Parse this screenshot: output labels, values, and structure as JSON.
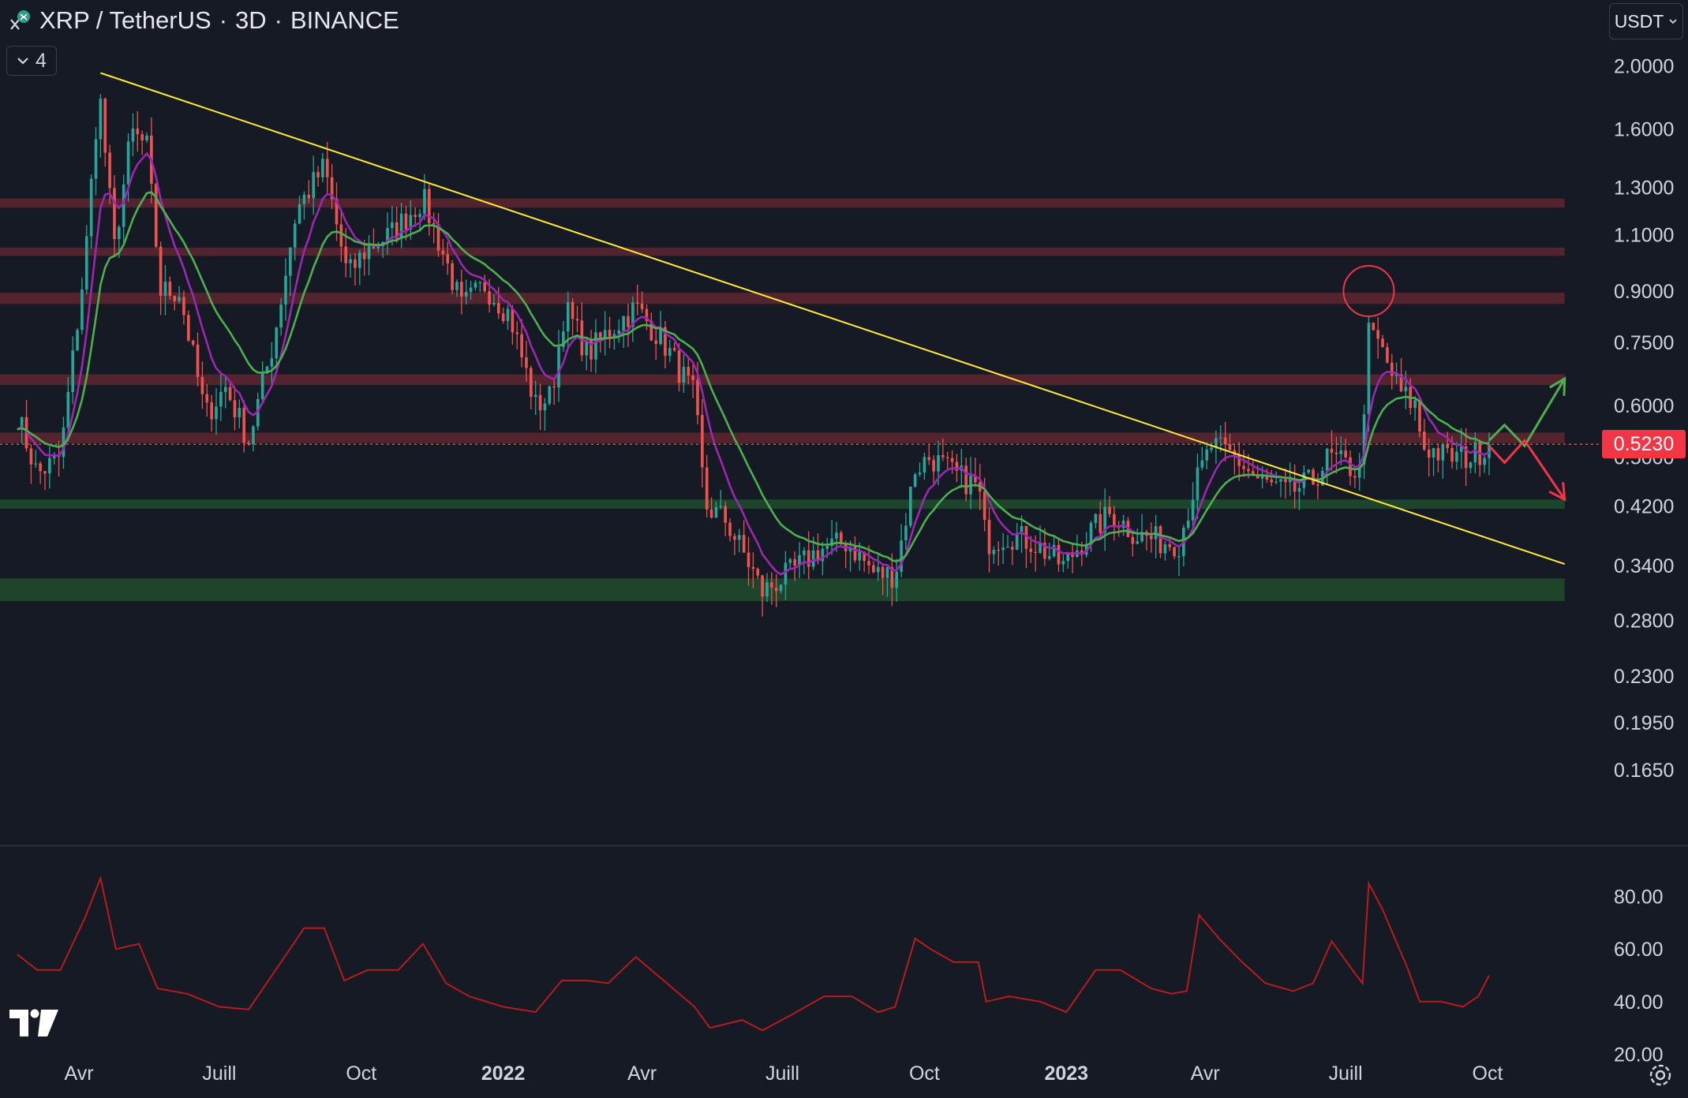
{
  "header": {
    "symbol": "XRP / TetherUS",
    "interval": "3D",
    "exchange": "BINANCE",
    "sep": "·",
    "indicator_count": "4",
    "currency": "USDT"
  },
  "icons": {
    "close": "close-icon",
    "logo": "xrp-logo-icon",
    "collapse": "chevron-down-icon",
    "currency_dropdown": "chevron-down-icon",
    "brand": "tradingview-logo-icon",
    "settings": "gear-icon"
  },
  "colors": {
    "background": "#161a25",
    "bull": "#26a69a",
    "bear": "#ef5350",
    "ma_fast": "#9c27b0",
    "ma_slow": "#4caf50",
    "trendline": "#ffeb3b",
    "resistance_zone": "#5a2530",
    "support_zone": "#1f4a2c",
    "rsi": "#b71c1c",
    "up_arrow": "#4caf50",
    "down_arrow": "#f23645",
    "highlight_circle": "#f23645"
  },
  "chart_data": [
    {
      "type": "candlestick",
      "scale": "log",
      "ylim": [
        0.145,
        2.1
      ],
      "x_tick_labels": [
        "Avr",
        "Juill",
        "Oct",
        "2022",
        "Avr",
        "Juill",
        "Oct",
        "2023",
        "Avr",
        "Juill",
        "Oct"
      ],
      "bold_x_labels": [
        "2022",
        "2023"
      ],
      "x_tick_dates": [
        "2021-04-01",
        "2021-07-01",
        "2021-10-01",
        "2022-01-01",
        "2022-04-01",
        "2022-07-01",
        "2022-10-01",
        "2023-01-01",
        "2023-04-01",
        "2023-07-01",
        "2023-10-01"
      ],
      "y_ticks": [
        {
          "value": 2.0,
          "label": "2.0000"
        },
        {
          "value": 1.6,
          "label": "1.6000"
        },
        {
          "value": 1.3,
          "label": "1.3000"
        },
        {
          "value": 1.1,
          "label": "1.1000"
        },
        {
          "value": 0.9,
          "label": "0.9000"
        },
        {
          "value": 0.75,
          "label": "0.7500"
        },
        {
          "value": 0.6,
          "label": "0.6000"
        },
        {
          "value": 0.5,
          "label": "0.5000"
        },
        {
          "value": 0.42,
          "label": "0.4200"
        },
        {
          "value": 0.34,
          "label": "0.3400"
        },
        {
          "value": 0.28,
          "label": "0.2800"
        },
        {
          "value": 0.23,
          "label": "0.2300"
        },
        {
          "value": 0.195,
          "label": "0.1950"
        },
        {
          "value": 0.165,
          "label": "0.1650"
        }
      ],
      "last_price": 0.523,
      "last_price_label": "0.5230",
      "price_path": [
        [
          "2021-02-20",
          0.58
        ],
        [
          "2021-03-05",
          0.47
        ],
        [
          "2021-03-20",
          0.5
        ],
        [
          "2021-04-05",
          1.0
        ],
        [
          "2021-04-14",
          1.85
        ],
        [
          "2021-04-24",
          1.05
        ],
        [
          "2021-05-05",
          1.58
        ],
        [
          "2021-05-15",
          1.5
        ],
        [
          "2021-05-24",
          0.9
        ],
        [
          "2021-06-05",
          0.9
        ],
        [
          "2021-06-22",
          0.58
        ],
        [
          "2021-07-05",
          0.64
        ],
        [
          "2021-07-20",
          0.53
        ],
        [
          "2021-08-05",
          0.75
        ],
        [
          "2021-08-20",
          1.2
        ],
        [
          "2021-09-07",
          1.4
        ],
        [
          "2021-09-22",
          0.95
        ],
        [
          "2021-10-05",
          1.05
        ],
        [
          "2021-10-20",
          1.1
        ],
        [
          "2021-11-10",
          1.25
        ],
        [
          "2021-11-25",
          1.0
        ],
        [
          "2021-12-05",
          0.85
        ],
        [
          "2021-12-20",
          0.92
        ],
        [
          "2022-01-05",
          0.83
        ],
        [
          "2022-01-22",
          0.6
        ],
        [
          "2022-02-01",
          0.62
        ],
        [
          "2022-02-10",
          0.85
        ],
        [
          "2022-02-25",
          0.72
        ],
        [
          "2022-03-10",
          0.78
        ],
        [
          "2022-03-28",
          0.85
        ],
        [
          "2022-04-15",
          0.75
        ],
        [
          "2022-05-05",
          0.62
        ],
        [
          "2022-05-12",
          0.42
        ],
        [
          "2022-05-25",
          0.4
        ],
        [
          "2022-06-10",
          0.34
        ],
        [
          "2022-06-18",
          0.31
        ],
        [
          "2022-07-05",
          0.33
        ],
        [
          "2022-07-25",
          0.36
        ],
        [
          "2022-08-12",
          0.37
        ],
        [
          "2022-08-30",
          0.33
        ],
        [
          "2022-09-12",
          0.33
        ],
        [
          "2022-09-25",
          0.48
        ],
        [
          "2022-10-05",
          0.5
        ],
        [
          "2022-10-20",
          0.47
        ],
        [
          "2022-11-05",
          0.45
        ],
        [
          "2022-11-10",
          0.37
        ],
        [
          "2022-11-25",
          0.38
        ],
        [
          "2022-12-10",
          0.37
        ],
        [
          "2022-12-30",
          0.34
        ],
        [
          "2023-01-15",
          0.38
        ],
        [
          "2023-01-30",
          0.41
        ],
        [
          "2023-02-15",
          0.38
        ],
        [
          "2023-03-05",
          0.37
        ],
        [
          "2023-03-15",
          0.37
        ],
        [
          "2023-03-25",
          0.45
        ],
        [
          "2023-04-05",
          0.52
        ],
        [
          "2023-04-20",
          0.5
        ],
        [
          "2023-05-05",
          0.46
        ],
        [
          "2023-05-25",
          0.44
        ],
        [
          "2023-06-10",
          0.46
        ],
        [
          "2023-06-20",
          0.5
        ],
        [
          "2023-07-05",
          0.48
        ],
        [
          "2023-07-12",
          0.47
        ],
        [
          "2023-07-14",
          0.78
        ],
        [
          "2023-07-22",
          0.75
        ],
        [
          "2023-08-05",
          0.63
        ],
        [
          "2023-08-15",
          0.6
        ],
        [
          "2023-08-20",
          0.52
        ],
        [
          "2023-09-05",
          0.5
        ],
        [
          "2023-09-20",
          0.5
        ],
        [
          "2023-10-02",
          0.523
        ]
      ],
      "ma_fast_name": "",
      "ma_slow_name": "",
      "trendline": [
        [
          "2021-04-15",
          1.95
        ],
        [
          "2023-11-20",
          0.342
        ]
      ],
      "resistance_zones": [
        [
          1.21,
          1.25
        ],
        [
          1.02,
          1.05
        ],
        [
          0.86,
          0.895
        ],
        [
          0.645,
          0.67
        ],
        [
          0.525,
          0.545
        ]
      ],
      "support_zones": [
        [
          0.416,
          0.43
        ],
        [
          0.3,
          0.325
        ]
      ],
      "zone_end_date": "2023-11-20",
      "projections": [
        {
          "color": "up",
          "points": [
            [
              "2023-10-02",
              0.53
            ],
            [
              "2023-10-12",
              0.56
            ],
            [
              "2023-10-25",
              0.52
            ],
            [
              "2023-11-20",
              0.66
            ]
          ]
        },
        {
          "color": "down",
          "points": [
            [
              "2023-10-02",
              0.52
            ],
            [
              "2023-10-12",
              0.49
            ],
            [
              "2023-10-25",
              0.53
            ],
            [
              "2023-11-20",
              0.43
            ]
          ]
        }
      ],
      "highlight_circle": {
        "date": "2023-07-16",
        "value": 0.9
      }
    },
    {
      "type": "line",
      "name": "",
      "ylim": [
        19.5,
        88
      ],
      "y_ticks": [
        80,
        60,
        40,
        20
      ],
      "y_tick_labels": [
        "80.00",
        "60.00",
        "40.00",
        "20.00"
      ],
      "series": [
        [
          "2021-02-20",
          58
        ],
        [
          "2021-03-05",
          52
        ],
        [
          "2021-03-20",
          52
        ],
        [
          "2021-04-05",
          72
        ],
        [
          "2021-04-15",
          87
        ],
        [
          "2021-04-25",
          60
        ],
        [
          "2021-05-10",
          62
        ],
        [
          "2021-05-22",
          45
        ],
        [
          "2021-06-10",
          43
        ],
        [
          "2021-07-01",
          38
        ],
        [
          "2021-07-20",
          37
        ],
        [
          "2021-08-10",
          55
        ],
        [
          "2021-08-25",
          68
        ],
        [
          "2021-09-07",
          68
        ],
        [
          "2021-09-20",
          48
        ],
        [
          "2021-10-05",
          52
        ],
        [
          "2021-10-25",
          52
        ],
        [
          "2021-11-10",
          62
        ],
        [
          "2021-11-25",
          47
        ],
        [
          "2021-12-10",
          42
        ],
        [
          "2022-01-01",
          38
        ],
        [
          "2022-01-22",
          36
        ],
        [
          "2022-02-08",
          48
        ],
        [
          "2022-02-25",
          48
        ],
        [
          "2022-03-10",
          47
        ],
        [
          "2022-03-28",
          57
        ],
        [
          "2022-04-15",
          48
        ],
        [
          "2022-05-05",
          38
        ],
        [
          "2022-05-15",
          30
        ],
        [
          "2022-06-05",
          33
        ],
        [
          "2022-06-18",
          29
        ],
        [
          "2022-07-10",
          36
        ],
        [
          "2022-07-28",
          42
        ],
        [
          "2022-08-15",
          42
        ],
        [
          "2022-09-01",
          36
        ],
        [
          "2022-09-12",
          38
        ],
        [
          "2022-09-25",
          64
        ],
        [
          "2022-10-05",
          60
        ],
        [
          "2022-10-20",
          55
        ],
        [
          "2022-11-05",
          55
        ],
        [
          "2022-11-10",
          40
        ],
        [
          "2022-11-25",
          42
        ],
        [
          "2022-12-15",
          40
        ],
        [
          "2023-01-01",
          36
        ],
        [
          "2023-01-20",
          52
        ],
        [
          "2023-02-05",
          52
        ],
        [
          "2023-02-25",
          45
        ],
        [
          "2023-03-10",
          43
        ],
        [
          "2023-03-20",
          44
        ],
        [
          "2023-03-28",
          73
        ],
        [
          "2023-04-10",
          64
        ],
        [
          "2023-04-25",
          55
        ],
        [
          "2023-05-10",
          47
        ],
        [
          "2023-05-28",
          44
        ],
        [
          "2023-06-10",
          47
        ],
        [
          "2023-06-22",
          63
        ],
        [
          "2023-07-08",
          50
        ],
        [
          "2023-07-12",
          47
        ],
        [
          "2023-07-16",
          85
        ],
        [
          "2023-07-25",
          75
        ],
        [
          "2023-08-10",
          53
        ],
        [
          "2023-08-18",
          40
        ],
        [
          "2023-09-01",
          40
        ],
        [
          "2023-09-15",
          38
        ],
        [
          "2023-09-25",
          42
        ],
        [
          "2023-10-02",
          50
        ]
      ]
    }
  ]
}
